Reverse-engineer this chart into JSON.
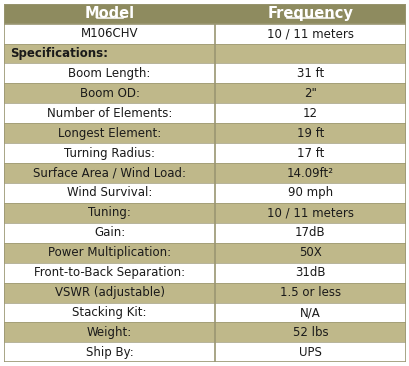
{
  "header": [
    "Model",
    "Frequency"
  ],
  "rows": [
    {
      "label": "M106CHV",
      "value": "10 / 11 meters",
      "section": false,
      "shaded": false
    },
    {
      "label": "Specifications:",
      "value": "",
      "section": true,
      "shaded": true
    },
    {
      "label": "Boom Length:",
      "value": "31 ft",
      "section": false,
      "shaded": false
    },
    {
      "label": "Boom OD:",
      "value": "2\"",
      "section": false,
      "shaded": true
    },
    {
      "label": "Number of Elements:",
      "value": "12",
      "section": false,
      "shaded": false
    },
    {
      "label": "Longest Element:",
      "value": "19 ft",
      "section": false,
      "shaded": true
    },
    {
      "label": "Turning Radius:",
      "value": "17 ft",
      "section": false,
      "shaded": false
    },
    {
      "label": "Surface Area / Wind Load:",
      "value": "14.09ft²",
      "section": false,
      "shaded": true
    },
    {
      "label": "Wind Survival:",
      "value": "90 mph",
      "section": false,
      "shaded": false
    },
    {
      "label": "Tuning:",
      "value": "10 / 11 meters",
      "section": false,
      "shaded": true
    },
    {
      "label": "Gain:",
      "value": "17dB",
      "section": false,
      "shaded": false
    },
    {
      "label": "Power Multiplication:",
      "value": "50X",
      "section": false,
      "shaded": true
    },
    {
      "label": "Front-to-Back Separation:",
      "value": "31dB",
      "section": false,
      "shaded": false
    },
    {
      "label": "VSWR (adjustable)",
      "value": "1.5 or less",
      "section": false,
      "shaded": true
    },
    {
      "label": "Stacking Kit:",
      "value": "N/A",
      "section": false,
      "shaded": false
    },
    {
      "label": "Weight:",
      "value": "52 lbs",
      "section": false,
      "shaded": true
    },
    {
      "label": "Ship By:",
      "value": "UPS",
      "section": false,
      "shaded": false
    }
  ],
  "header_bg": "#8E8B5F",
  "tan_color": "#BFB88A",
  "white_color": "#FFFFFF",
  "header_fg": "#FFFFFF",
  "body_fg": "#1A1A1A",
  "grid_color": "#9A9672",
  "col_split": 0.525,
  "fig_w": 4.1,
  "fig_h": 3.66,
  "dpi": 100
}
